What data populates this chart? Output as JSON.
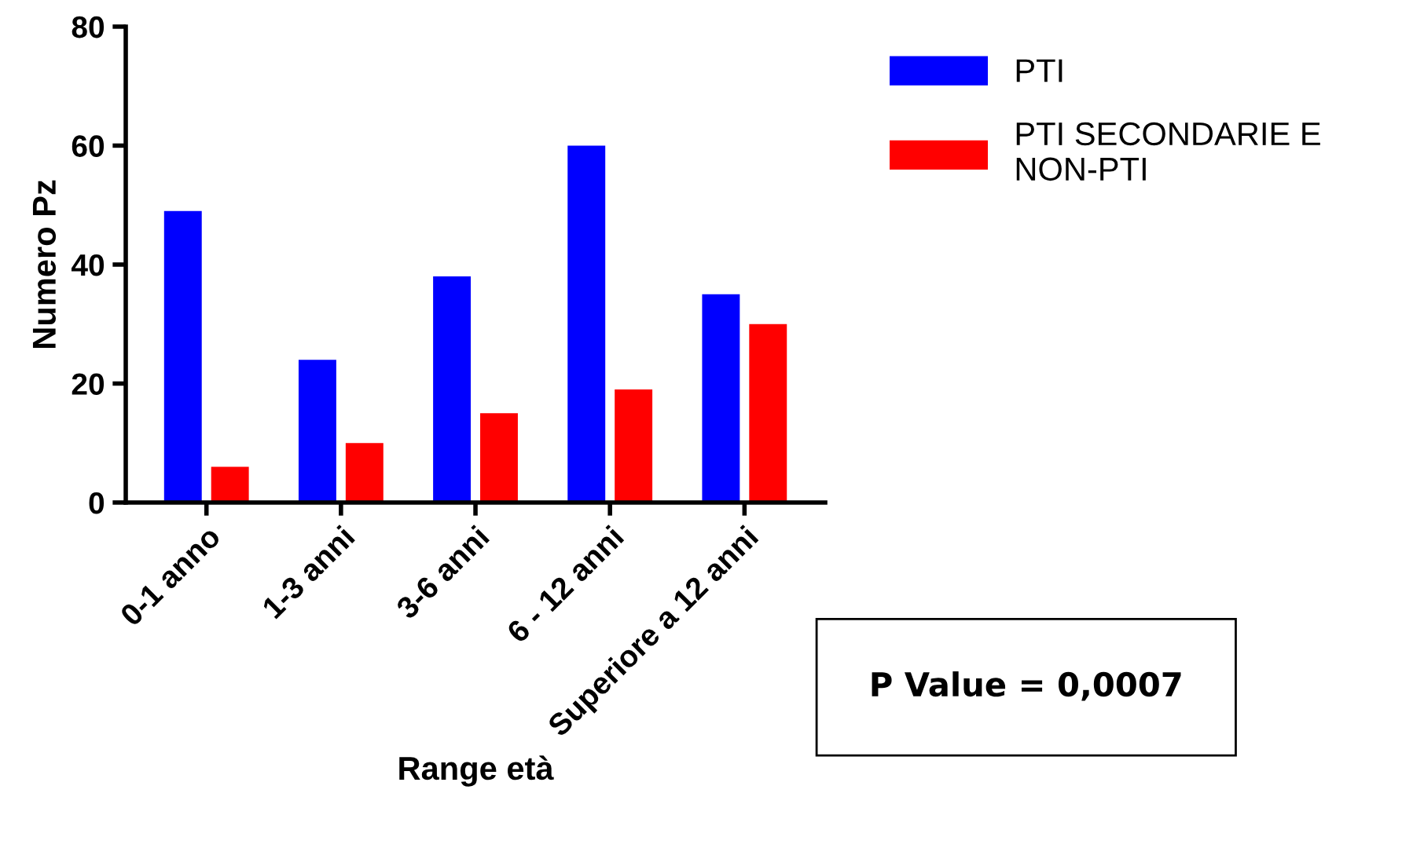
{
  "chart_data": {
    "type": "bar",
    "categories": [
      "0-1 anno",
      "1-3 anni",
      "3-6 anni",
      "6 - 12 anni",
      "Superiore a 12 anni"
    ],
    "series": [
      {
        "name": "PTI",
        "color": "#0000ff",
        "values": [
          49,
          24,
          38,
          60,
          35
        ]
      },
      {
        "name": "PTI SECONDARIE E\nNON-PTI",
        "color": "#ff0000",
        "values": [
          6,
          10,
          15,
          19,
          30
        ]
      }
    ],
    "xlabel": "Range età",
    "ylabel": "Numero Pz",
    "ylim": [
      0,
      80
    ],
    "yticks": [
      0,
      20,
      40,
      60,
      80
    ],
    "grid": false,
    "legend": "top right",
    "annotations": [
      "P Value = 0,0007"
    ]
  }
}
